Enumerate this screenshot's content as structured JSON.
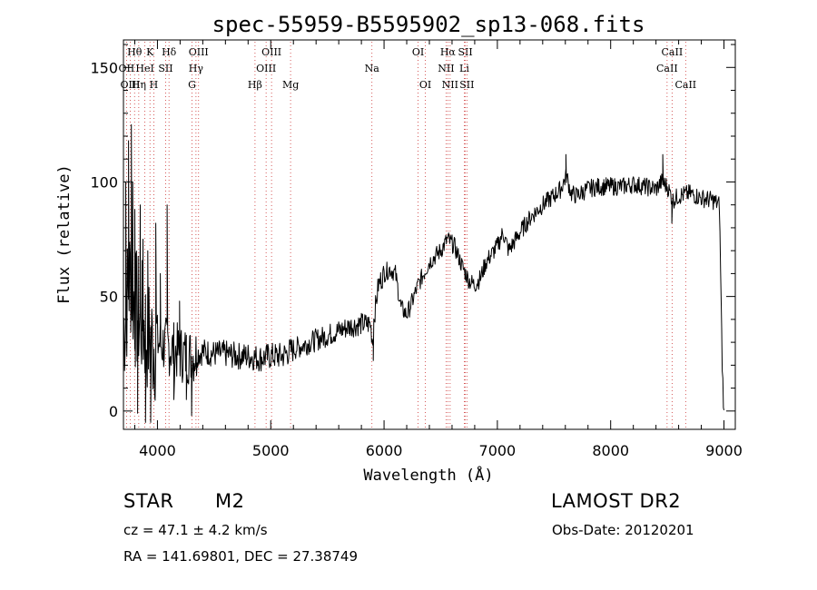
{
  "chart_data": {
    "type": "line",
    "title": "spec-55959-B5595902_sp13-068.fits",
    "xlabel": "Wavelength (Å)",
    "ylabel": "Flux (relative)",
    "xlim": [
      3700,
      9100
    ],
    "ylim": [
      -8,
      162
    ],
    "xticks": [
      {
        "value": 4000,
        "label": "4000"
      },
      {
        "value": 5000,
        "label": "5000"
      },
      {
        "value": 6000,
        "label": "6000"
      },
      {
        "value": 7000,
        "label": "7000"
      },
      {
        "value": 8000,
        "label": "8000"
      },
      {
        "value": 9000,
        "label": "9000"
      }
    ],
    "yticks": [
      {
        "value": 0,
        "label": "0"
      },
      {
        "value": 50,
        "label": "50"
      },
      {
        "value": 100,
        "label": "100"
      },
      {
        "value": 150,
        "label": "150"
      }
    ],
    "line_color": "#000000",
    "marker_color": "#cc3333",
    "line_markers": [
      {
        "name": "Hθ",
        "wl": 3798,
        "row": 0
      },
      {
        "name": "K",
        "wl": 3934,
        "row": 0
      },
      {
        "name": "Hδ",
        "wl": 4102,
        "row": 0
      },
      {
        "name": "OIII",
        "wl": 4363,
        "row": 0
      },
      {
        "name": "OIII",
        "wl": 5007,
        "row": 0
      },
      {
        "name": "OI",
        "wl": 6300,
        "row": 0
      },
      {
        "name": "Hα",
        "wl": 6563,
        "row": 0
      },
      {
        "name": "SII",
        "wl": 6717,
        "row": 0
      },
      {
        "name": "CaII",
        "wl": 8542,
        "row": 0
      },
      {
        "name": "OII",
        "wl": 3727,
        "row": 1
      },
      {
        "name": "HeI",
        "wl": 3889,
        "row": 1
      },
      {
        "name": "SII",
        "wl": 4072,
        "row": 1
      },
      {
        "name": "Hγ",
        "wl": 4340,
        "row": 1
      },
      {
        "name": "OIII",
        "wl": 4959,
        "row": 1
      },
      {
        "name": "Na",
        "wl": 5893,
        "row": 1
      },
      {
        "name": "NII",
        "wl": 6548,
        "row": 1
      },
      {
        "name": "Li",
        "wl": 6708,
        "row": 1
      },
      {
        "name": "CaII",
        "wl": 8498,
        "row": 1
      },
      {
        "name": "OIII",
        "wl": 3760,
        "row": 2
      },
      {
        "name": "Hη",
        "wl": 3835,
        "row": 2
      },
      {
        "name": "H",
        "wl": 3968,
        "row": 2
      },
      {
        "name": "G",
        "wl": 4305,
        "row": 2
      },
      {
        "name": "Hβ",
        "wl": 4861,
        "row": 2
      },
      {
        "name": "Mg",
        "wl": 5175,
        "row": 2
      },
      {
        "name": "OI",
        "wl": 6364,
        "row": 2
      },
      {
        "name": "NII",
        "wl": 6583,
        "row": 2
      },
      {
        "name": "SII",
        "wl": 6731,
        "row": 2
      },
      {
        "name": "CaII",
        "wl": 8662,
        "row": 2
      }
    ],
    "spectrum_anchors": [
      [
        3700,
        35
      ],
      [
        3760,
        60
      ],
      [
        3800,
        45
      ],
      [
        3850,
        40
      ],
      [
        3900,
        35
      ],
      [
        3950,
        30
      ],
      [
        4000,
        30
      ],
      [
        4100,
        28
      ],
      [
        4200,
        25
      ],
      [
        4300,
        24
      ],
      [
        4400,
        26
      ],
      [
        4500,
        25
      ],
      [
        4600,
        25
      ],
      [
        4700,
        24
      ],
      [
        4800,
        24
      ],
      [
        4900,
        23
      ],
      [
        5000,
        24
      ],
      [
        5100,
        24
      ],
      [
        5200,
        27
      ],
      [
        5300,
        29
      ],
      [
        5400,
        31
      ],
      [
        5500,
        33
      ],
      [
        5600,
        35
      ],
      [
        5700,
        37
      ],
      [
        5800,
        38
      ],
      [
        5880,
        38
      ],
      [
        5900,
        30
      ],
      [
        5910,
        40
      ],
      [
        5950,
        55
      ],
      [
        6000,
        60
      ],
      [
        6050,
        62
      ],
      [
        6100,
        60
      ],
      [
        6150,
        45
      ],
      [
        6200,
        42
      ],
      [
        6250,
        48
      ],
      [
        6300,
        55
      ],
      [
        6400,
        65
      ],
      [
        6500,
        70
      ],
      [
        6560,
        75
      ],
      [
        6620,
        72
      ],
      [
        6700,
        62
      ],
      [
        6750,
        57
      ],
      [
        6800,
        55
      ],
      [
        6850,
        58
      ],
      [
        6900,
        65
      ],
      [
        7000,
        72
      ],
      [
        7050,
        78
      ],
      [
        7100,
        70
      ],
      [
        7200,
        78
      ],
      [
        7300,
        85
      ],
      [
        7400,
        90
      ],
      [
        7500,
        94
      ],
      [
        7560,
        97
      ],
      [
        7610,
        103
      ],
      [
        7650,
        95
      ],
      [
        7700,
        94
      ],
      [
        7800,
        97
      ],
      [
        7900,
        98
      ],
      [
        8000,
        98
      ],
      [
        8100,
        98
      ],
      [
        8200,
        99
      ],
      [
        8300,
        98
      ],
      [
        8400,
        97
      ],
      [
        8450,
        100
      ],
      [
        8500,
        98
      ],
      [
        8550,
        92
      ],
      [
        8600,
        94
      ],
      [
        8700,
        95
      ],
      [
        8800,
        93
      ],
      [
        8900,
        92
      ],
      [
        8960,
        90
      ],
      [
        8985,
        20
      ],
      [
        9000,
        -2
      ]
    ],
    "spikes": [
      [
        3720,
        100
      ],
      [
        3745,
        118
      ],
      [
        3770,
        125
      ],
      [
        3782,
        100
      ],
      [
        3800,
        88
      ],
      [
        3825,
        -1
      ],
      [
        3848,
        90
      ],
      [
        3872,
        75
      ],
      [
        3895,
        -5
      ],
      [
        3915,
        70
      ],
      [
        3940,
        -5
      ],
      [
        3985,
        82
      ],
      [
        4025,
        60
      ],
      [
        4085,
        90
      ],
      [
        4145,
        5
      ],
      [
        4195,
        48
      ],
      [
        4255,
        5
      ],
      [
        4302,
        -2
      ],
      [
        5905,
        22
      ],
      [
        7605,
        112
      ],
      [
        8460,
        112
      ],
      [
        8540,
        82
      ]
    ]
  },
  "info": {
    "object_class": "STAR",
    "subclass": "M2",
    "survey": "LAMOST DR2",
    "cz": "cz = 47.1 ± 4.2 km/s",
    "obs_date": "Obs-Date: 20120201",
    "coords": "RA = 141.69801, DEC =  27.38749"
  }
}
